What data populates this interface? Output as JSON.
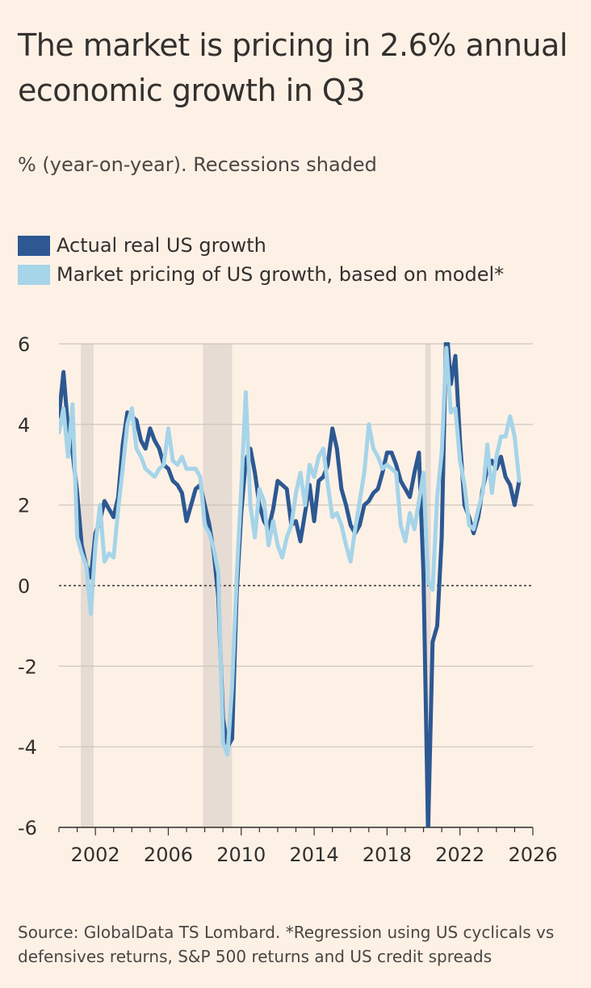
{
  "title": "The market is pricing in 2.6% annual economic growth in Q3",
  "subtitle": "% (year-on-year). Recessions shaded",
  "source": "Source: GlobalData TS Lombard. *Regression using US cyclicals vs defensives returns, S&P 500 returns and US credit spreads",
  "colors": {
    "actual": "#2D5892",
    "market": "#A6D4E8",
    "recession": "#E6DCD4",
    "grid": "#C9C2BB",
    "zero": "#33302E",
    "text": "#33302E"
  },
  "chart_data": {
    "type": "line",
    "xlim": [
      2000,
      2026
    ],
    "ylim": [
      -6,
      6
    ],
    "x_ticks": [
      2002,
      2006,
      2010,
      2014,
      2018,
      2022,
      2026
    ],
    "y_ticks": [
      6,
      4,
      2,
      0,
      -2,
      -4,
      -6
    ],
    "grid": "horizontal",
    "legend_position": "top-left",
    "recessions": [
      [
        2001.2,
        2001.9
      ],
      [
        2007.9,
        2009.5
      ],
      [
        2020.1,
        2020.4
      ]
    ],
    "series": [
      {
        "name": "Actual real US growth",
        "key": "actual",
        "x": [
          2000.0,
          2000.25,
          2000.5,
          2000.75,
          2001.0,
          2001.25,
          2001.5,
          2001.75,
          2002.0,
          2002.25,
          2002.5,
          2002.75,
          2003.0,
          2003.25,
          2003.5,
          2003.75,
          2004.0,
          2004.25,
          2004.5,
          2004.75,
          2005.0,
          2005.25,
          2005.5,
          2005.75,
          2006.0,
          2006.25,
          2006.5,
          2006.75,
          2007.0,
          2007.25,
          2007.5,
          2007.75,
          2008.0,
          2008.25,
          2008.5,
          2008.75,
          2009.0,
          2009.25,
          2009.5,
          2009.75,
          2010.0,
          2010.25,
          2010.5,
          2010.75,
          2011.0,
          2011.25,
          2011.5,
          2011.75,
          2012.0,
          2012.25,
          2012.5,
          2012.75,
          2013.0,
          2013.25,
          2013.5,
          2013.75,
          2014.0,
          2014.25,
          2014.5,
          2014.75,
          2015.0,
          2015.25,
          2015.5,
          2015.75,
          2016.0,
          2016.25,
          2016.5,
          2016.75,
          2017.0,
          2017.25,
          2017.5,
          2017.75,
          2018.0,
          2018.25,
          2018.5,
          2018.75,
          2019.0,
          2019.25,
          2019.5,
          2019.75,
          2020.0,
          2020.25,
          2020.5,
          2020.75,
          2021.0,
          2021.25,
          2021.5,
          2021.75,
          2022.0,
          2022.25,
          2022.5,
          2022.75,
          2023.0,
          2023.25,
          2023.5,
          2023.75,
          2024.0,
          2024.25,
          2024.5,
          2024.75,
          2025.0,
          2025.25
        ],
        "y": [
          4.2,
          5.3,
          3.9,
          3.3,
          2.3,
          1.0,
          0.5,
          0.2,
          1.3,
          1.6,
          2.1,
          1.9,
          1.7,
          2.2,
          3.5,
          4.3,
          4.2,
          4.1,
          3.6,
          3.4,
          3.9,
          3.6,
          3.4,
          3.0,
          2.9,
          2.6,
          2.5,
          2.3,
          1.6,
          2.0,
          2.4,
          2.5,
          2.0,
          1.5,
          0.8,
          -0.3,
          -3.3,
          -4.0,
          -3.8,
          -0.2,
          1.8,
          3.1,
          3.4,
          2.8,
          2.0,
          1.6,
          1.4,
          1.9,
          2.6,
          2.5,
          2.4,
          1.5,
          1.6,
          1.1,
          1.8,
          2.5,
          1.6,
          2.6,
          2.7,
          3.0,
          3.9,
          3.4,
          2.4,
          2.0,
          1.5,
          1.3,
          1.5,
          2.0,
          2.1,
          2.3,
          2.4,
          2.8,
          3.3,
          3.3,
          3.0,
          2.6,
          2.4,
          2.2,
          2.8,
          3.3,
          0.3,
          -6.1,
          -1.4,
          -1.0,
          1.2,
          6.5,
          5.0,
          5.7,
          3.6,
          2.0,
          1.7,
          1.3,
          1.7,
          2.4,
          2.9,
          3.1,
          2.9,
          3.2,
          2.7,
          2.5,
          2.0,
          2.6
        ],
        "label": "Actual real US growth"
      },
      {
        "name": "Market pricing of US growth, based on model*",
        "key": "market",
        "x": [
          2000.0,
          2000.25,
          2000.5,
          2000.75,
          2001.0,
          2001.25,
          2001.5,
          2001.75,
          2002.0,
          2002.25,
          2002.5,
          2002.75,
          2003.0,
          2003.25,
          2003.5,
          2003.75,
          2004.0,
          2004.25,
          2004.5,
          2004.75,
          2005.0,
          2005.25,
          2005.5,
          2005.75,
          2006.0,
          2006.25,
          2006.5,
          2006.75,
          2007.0,
          2007.25,
          2007.5,
          2007.75,
          2008.0,
          2008.25,
          2008.5,
          2008.75,
          2009.0,
          2009.25,
          2009.5,
          2009.75,
          2010.0,
          2010.25,
          2010.5,
          2010.75,
          2011.0,
          2011.25,
          2011.5,
          2011.75,
          2012.0,
          2012.25,
          2012.5,
          2012.75,
          2013.0,
          2013.25,
          2013.5,
          2013.75,
          2014.0,
          2014.25,
          2014.5,
          2014.75,
          2015.0,
          2015.25,
          2015.5,
          2015.75,
          2016.0,
          2016.25,
          2016.5,
          2016.75,
          2017.0,
          2017.25,
          2017.5,
          2017.75,
          2018.0,
          2018.25,
          2018.5,
          2018.75,
          2019.0,
          2019.25,
          2019.5,
          2019.75,
          2020.0,
          2020.25,
          2020.5,
          2020.75,
          2021.0,
          2021.25,
          2021.5,
          2021.75,
          2022.0,
          2022.25,
          2022.5,
          2022.75,
          2023.0,
          2023.25,
          2023.5,
          2023.75,
          2024.0,
          2024.25,
          2024.5,
          2024.75,
          2025.0,
          2025.25
        ],
        "y": [
          3.8,
          4.4,
          3.2,
          4.5,
          1.2,
          0.8,
          0.5,
          -0.7,
          1.0,
          2.0,
          0.6,
          0.8,
          0.7,
          1.9,
          2.9,
          4.0,
          4.4,
          3.4,
          3.2,
          2.9,
          2.8,
          2.7,
          2.9,
          3.0,
          3.9,
          3.1,
          3.0,
          3.2,
          2.9,
          2.9,
          2.9,
          2.7,
          1.5,
          1.3,
          0.9,
          0.3,
          -3.9,
          -4.2,
          -2.5,
          0.2,
          2.4,
          4.8,
          2.0,
          1.2,
          2.4,
          2.1,
          1.0,
          1.6,
          1.0,
          0.7,
          1.2,
          1.5,
          2.3,
          2.8,
          2.0,
          3.0,
          2.7,
          3.2,
          3.4,
          2.5,
          1.7,
          1.8,
          1.5,
          1.0,
          0.6,
          1.4,
          2.1,
          2.8,
          4.0,
          3.4,
          3.2,
          2.9,
          3.0,
          2.9,
          2.8,
          1.5,
          1.1,
          1.8,
          1.4,
          2.1,
          2.8,
          0.1,
          -0.1,
          2.2,
          3.3,
          5.9,
          4.3,
          4.4,
          3.1,
          2.5,
          1.5,
          1.4,
          1.9,
          2.3,
          3.5,
          2.3,
          3.2,
          3.7,
          3.7,
          4.2,
          3.7,
          2.6
        ],
        "label": "Market pricing of US growth, based on model*"
      }
    ]
  }
}
